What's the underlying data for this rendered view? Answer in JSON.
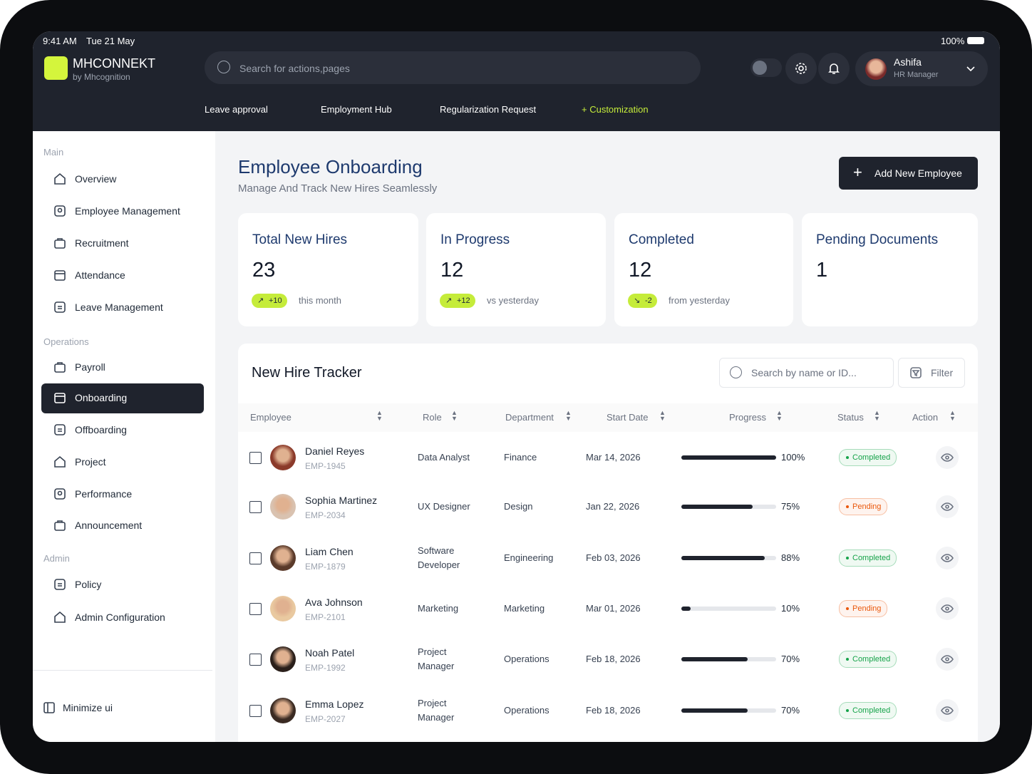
{
  "status_bar": {
    "time": "9:41 AM",
    "date": "Tue 21 May",
    "battery": "100%"
  },
  "brand": {
    "name": "MHCONNEKT",
    "tagline": "by Mhcognition"
  },
  "search_placeholder": "Search for actions,pages",
  "user": {
    "name": "Ashifa",
    "role": "HR Manager"
  },
  "top_nav": [
    "Leave approval",
    "Employment Hub",
    "Regularization Request",
    "+ Customization"
  ],
  "sidebar": {
    "sections": [
      {
        "title": "Main",
        "items": [
          "Overview",
          "Employee Management",
          "Recruitment",
          "Attendance",
          "Leave Management"
        ]
      },
      {
        "title": "Operations",
        "items": [
          "Payroll",
          "Onboarding",
          "Offboarding",
          "Project",
          "Performance",
          "Announcement"
        ]
      },
      {
        "title": "Admin",
        "items": [
          "Policy",
          "Admin Configuration"
        ]
      }
    ],
    "footer": "Minimize ui"
  },
  "page": {
    "title": "Employee Onboarding",
    "subtitle": "Manage And Track New Hires Seamlessly",
    "action": "Add New Employee"
  },
  "stats": [
    {
      "label": "Total New Hires",
      "value": 23,
      "change": "+10",
      "note": "this month"
    },
    {
      "label": "In Progress",
      "value": 12,
      "change": "+12",
      "note": "vs yesterday"
    },
    {
      "label": "Completed",
      "value": 12,
      "change": "-2",
      "note": "from yesterday"
    },
    {
      "label": "Pending Documents",
      "value": 1
    }
  ],
  "tracker": {
    "title": "New Hire Tracker",
    "search_placeholder": "Search by name or ID...",
    "filter": "Filter",
    "columns": [
      "Employee",
      "Role",
      "Department",
      "Start Date",
      "Progress",
      "Status",
      "Action"
    ],
    "rows": [
      {
        "name": "Daniel Reyes",
        "id": "EMP-1945",
        "role": "Data Analyst",
        "department": "Finance",
        "start_date": "Mar 14, 2026",
        "progress": 100,
        "progress_label": "100%",
        "status": "Completed",
        "color": "#16a34a"
      },
      {
        "name": "Sophia Martinez",
        "id": "EMP-2034",
        "role": "UX Designer",
        "department": "Design",
        "start_date": "Jan 22, 2026",
        "progress": 75,
        "progress_label": "75%",
        "status": "Pending",
        "color": "#ea580c"
      },
      {
        "name": "Liam Chen",
        "id": "EMP-1879",
        "role": "Software Developer",
        "department": "Engineering",
        "start_date": "Feb 03, 2026",
        "progress": 88,
        "progress_label": "88%",
        "status": "Completed",
        "color": "#16a34a"
      },
      {
        "name": "Ava Johnson",
        "id": "EMP-2101",
        "role": "Marketing",
        "department": "Marketing",
        "start_date": "Mar 01, 2026",
        "progress": 10,
        "progress_label": "10%",
        "status": "Pending",
        "color": "#ea580c"
      },
      {
        "name": "Noah Patel",
        "id": "EMP-1992",
        "role": "Project Manager",
        "department": "Operations",
        "start_date": "Feb 18, 2026",
        "progress": 70,
        "progress_label": "70%",
        "status": "Completed",
        "color": "#16a34a"
      },
      {
        "name": "Emma Lopez",
        "id": "EMP-2027",
        "role": "Project Manager",
        "department": "Operations",
        "start_date": "Feb 18, 2026",
        "progress": 70,
        "progress_label": "70%",
        "status": "Completed",
        "color": "#16a34a"
      }
    ]
  }
}
